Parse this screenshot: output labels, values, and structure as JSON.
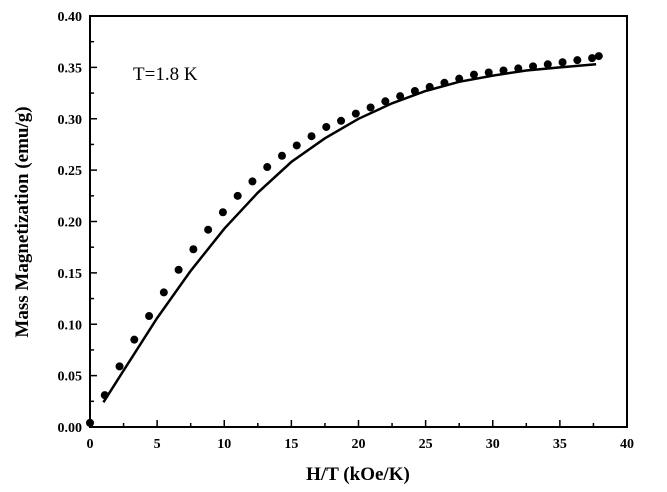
{
  "chart_data": {
    "type": "scatter",
    "xlabel": "H/T (kOe/K)",
    "ylabel": "Mass Magnetization (emu/g)",
    "annotation": "T=1.8 K",
    "xlim": [
      0,
      40
    ],
    "ylim": [
      0.0,
      0.4
    ],
    "x_ticks": [
      "0",
      "5",
      "10",
      "15",
      "20",
      "25",
      "30",
      "35",
      "40"
    ],
    "y_ticks": [
      "0.00",
      "0.05",
      "0.10",
      "0.15",
      "0.20",
      "0.25",
      "0.30",
      "0.35",
      "0.40"
    ],
    "grid": false,
    "legend": "none",
    "series": [
      {
        "kind": "points",
        "x": [
          0.0,
          1.1,
          2.2,
          3.3,
          4.4,
          5.5,
          6.6,
          7.7,
          8.8,
          9.9,
          11.0,
          12.1,
          13.2,
          14.3,
          15.4,
          16.5,
          17.6,
          18.7,
          19.8,
          20.9,
          22.0,
          23.1,
          24.2,
          25.3,
          26.4,
          27.5,
          28.6,
          29.7,
          30.8,
          31.9,
          33.0,
          34.1,
          35.2,
          36.3,
          37.4,
          37.9
        ],
        "y": [
          0.004,
          0.031,
          0.059,
          0.085,
          0.108,
          0.131,
          0.153,
          0.173,
          0.192,
          0.209,
          0.225,
          0.239,
          0.253,
          0.264,
          0.274,
          0.283,
          0.292,
          0.298,
          0.305,
          0.311,
          0.317,
          0.322,
          0.327,
          0.331,
          0.335,
          0.339,
          0.343,
          0.345,
          0.347,
          0.349,
          0.351,
          0.353,
          0.355,
          0.357,
          0.359,
          0.361
        ]
      },
      {
        "kind": "line",
        "x": [
          1.0,
          2.5,
          5.0,
          7.5,
          10.0,
          12.5,
          15.0,
          17.5,
          20.0,
          22.5,
          25.0,
          27.5,
          30.0,
          32.5,
          35.0,
          37.7
        ],
        "y": [
          0.024,
          0.055,
          0.106,
          0.152,
          0.193,
          0.228,
          0.258,
          0.281,
          0.3,
          0.315,
          0.327,
          0.336,
          0.342,
          0.347,
          0.35,
          0.353
        ]
      }
    ]
  }
}
